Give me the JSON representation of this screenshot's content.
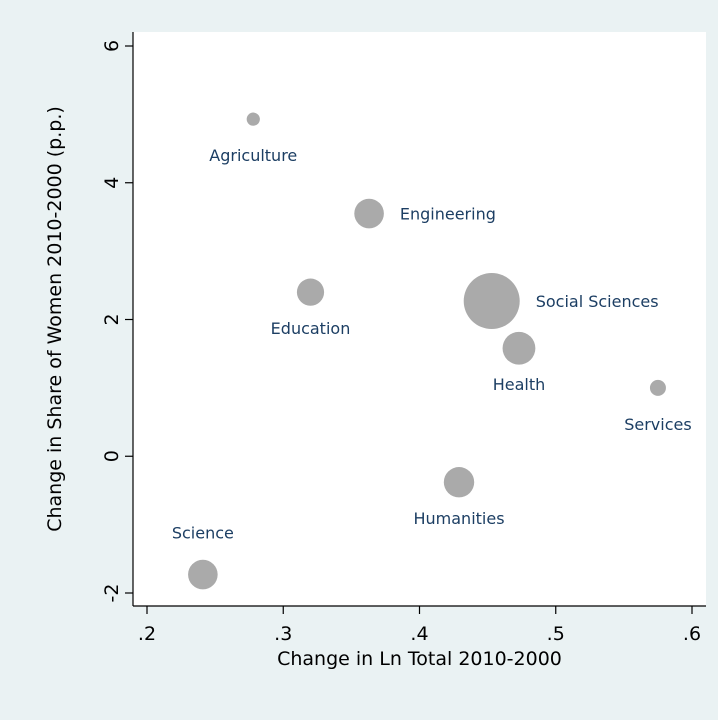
{
  "chart_data": {
    "type": "scatter",
    "title": "",
    "xlabel": "Change in Ln Total 2010-2000",
    "ylabel": "Change in Share of Women 2010-2000 (p.p.)",
    "xlim": [
      0.2,
      0.6
    ],
    "ylim": [
      -2,
      6
    ],
    "x_ticks": [
      {
        "value": 0.2,
        "label": ".2"
      },
      {
        "value": 0.3,
        "label": ".3"
      },
      {
        "value": 0.4,
        "label": ".4"
      },
      {
        "value": 0.5,
        "label": ".5"
      },
      {
        "value": 0.6,
        "label": ".6"
      }
    ],
    "y_ticks": [
      {
        "value": -2,
        "label": "-2"
      },
      {
        "value": 0,
        "label": "0"
      },
      {
        "value": 2,
        "label": "2"
      },
      {
        "value": 4,
        "label": "4"
      },
      {
        "value": 6,
        "label": "6"
      }
    ],
    "grid": false,
    "legend": "none",
    "marker_color": "#aaaaaa",
    "label_color": "#1c3e63",
    "background_color": "#eaf2f3",
    "plot_background_color": "#ffffff",
    "points": [
      {
        "label": "Agriculture",
        "x": 0.278,
        "y": 4.93,
        "relative_size": 0.33,
        "label_position": "below"
      },
      {
        "label": "Engineering",
        "x": 0.363,
        "y": 3.55,
        "relative_size": 0.74,
        "label_position": "right"
      },
      {
        "label": "Education",
        "x": 0.32,
        "y": 2.4,
        "relative_size": 0.68,
        "label_position": "below"
      },
      {
        "label": "Social Sciences",
        "x": 0.453,
        "y": 2.27,
        "relative_size": 1.4,
        "label_position": "right"
      },
      {
        "label": "Health",
        "x": 0.473,
        "y": 1.58,
        "relative_size": 0.82,
        "label_position": "below"
      },
      {
        "label": "Services",
        "x": 0.575,
        "y": 1.0,
        "relative_size": 0.4,
        "label_position": "below"
      },
      {
        "label": "Humanities",
        "x": 0.429,
        "y": -0.38,
        "relative_size": 0.76,
        "label_position": "below"
      },
      {
        "label": "Science",
        "x": 0.241,
        "y": -1.73,
        "relative_size": 0.74,
        "label_position": "above"
      }
    ]
  }
}
